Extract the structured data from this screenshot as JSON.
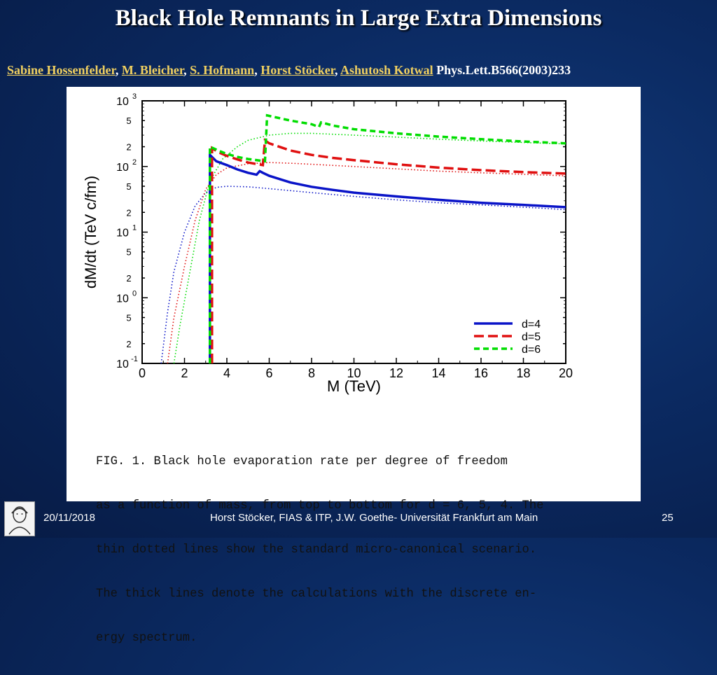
{
  "slide": {
    "title": "Black Hole Remnants in Large Extra Dimensions",
    "authors": [
      "Sabine Hossenfelder",
      "M. Bleicher",
      "S. Hofmann",
      "Horst Stöcker",
      "Ashutosh Kotwal"
    ],
    "reference": "Phys.Lett.B566(2003)233",
    "caption_lines": [
      "FIG. 1. Black hole evaporation rate per degree of freedom",
      "as a function of mass, from top to bottom for d = 6, 5, 4. The",
      "thin dotted lines show the standard micro-canonical scenario.",
      "The thick lines denote the calculations with the discrete en-",
      "ergy spectrum."
    ]
  },
  "footer": {
    "date": "20/11/2018",
    "credit": "Horst Stöcker, FIAS & ITP, J.W. Goethe- Universität Frankfurt am Main",
    "page": "25"
  },
  "colors": {
    "d4": "#0a14c8",
    "d5": "#e01010",
    "d6": "#00dd00"
  },
  "chart_data": {
    "type": "line",
    "xlabel": "M (TeV)",
    "ylabel": "dM/dt (TeV c/fm)",
    "xlim": [
      0,
      20
    ],
    "ylim": [
      0.1,
      1000
    ],
    "yscale": "log",
    "x_ticks": [
      "0",
      "2",
      "4",
      "6",
      "8",
      "10",
      "12",
      "14",
      "16",
      "18",
      "20"
    ],
    "y_ticks": [
      {
        "mant": "10",
        "exp": "3",
        "value": 1000
      },
      {
        "mant": "5",
        "exp": "",
        "value": 500
      },
      {
        "mant": "2",
        "exp": "",
        "value": 200
      },
      {
        "mant": "10",
        "exp": "2",
        "value": 100
      },
      {
        "mant": "5",
        "exp": "",
        "value": 50
      },
      {
        "mant": "2",
        "exp": "",
        "value": 20
      },
      {
        "mant": "10",
        "exp": "1",
        "value": 10
      },
      {
        "mant": "5",
        "exp": "",
        "value": 5
      },
      {
        "mant": "2",
        "exp": "",
        "value": 2
      },
      {
        "mant": "10",
        "exp": "0",
        "value": 1
      },
      {
        "mant": "5",
        "exp": "",
        "value": 0.5
      },
      {
        "mant": "2",
        "exp": "",
        "value": 0.2
      },
      {
        "mant": "10",
        "exp": "-1",
        "value": 0.1
      }
    ],
    "legend_position": "bottom-right",
    "series": [
      {
        "name": "d=4",
        "color_key": "d4",
        "thick": [
          [
            3.2,
            0.1
          ],
          [
            3.2,
            150
          ],
          [
            3.5,
            120
          ],
          [
            4,
            105
          ],
          [
            4.5,
            90
          ],
          [
            5,
            80
          ],
          [
            5.4,
            75
          ],
          [
            5.55,
            85
          ],
          [
            5.7,
            80
          ],
          [
            6,
            72
          ],
          [
            7,
            57
          ],
          [
            8,
            49
          ],
          [
            9,
            44
          ],
          [
            10,
            40
          ],
          [
            12,
            35
          ],
          [
            14,
            31
          ],
          [
            16,
            28
          ],
          [
            18,
            26
          ],
          [
            20,
            24
          ]
        ],
        "dotted": [
          [
            0.9,
            0.1
          ],
          [
            1.2,
            0.6
          ],
          [
            1.5,
            2.5
          ],
          [
            2,
            10
          ],
          [
            2.5,
            25
          ],
          [
            3,
            40
          ],
          [
            3.5,
            48
          ],
          [
            4,
            50
          ],
          [
            5,
            49
          ],
          [
            6,
            46
          ],
          [
            8,
            40
          ],
          [
            10,
            35
          ],
          [
            12,
            31
          ],
          [
            14,
            28
          ],
          [
            16,
            26
          ],
          [
            18,
            24
          ],
          [
            20,
            22
          ]
        ]
      },
      {
        "name": "d=5",
        "color_key": "d5",
        "thick": [
          [
            3.3,
            0.1
          ],
          [
            3.3,
            190
          ],
          [
            3.6,
            165
          ],
          [
            4,
            145
          ],
          [
            4.5,
            128
          ],
          [
            5,
            115
          ],
          [
            5.7,
            105
          ],
          [
            5.8,
            250
          ],
          [
            6,
            225
          ],
          [
            7,
            175
          ],
          [
            8,
            150
          ],
          [
            9,
            135
          ],
          [
            10,
            125
          ],
          [
            12,
            108
          ],
          [
            14,
            96
          ],
          [
            16,
            88
          ],
          [
            18,
            82
          ],
          [
            20,
            78
          ]
        ],
        "dotted": [
          [
            1.2,
            0.1
          ],
          [
            1.5,
            0.5
          ],
          [
            2,
            3
          ],
          [
            2.5,
            15
          ],
          [
            3,
            45
          ],
          [
            3.5,
            75
          ],
          [
            4,
            95
          ],
          [
            5,
            110
          ],
          [
            6,
            115
          ],
          [
            7,
            112
          ],
          [
            8,
            108
          ],
          [
            10,
            100
          ],
          [
            12,
            92
          ],
          [
            14,
            85
          ],
          [
            16,
            80
          ],
          [
            18,
            76
          ],
          [
            20,
            72
          ]
        ]
      },
      {
        "name": "d=6",
        "color_key": "d6",
        "thick": [
          [
            3.2,
            0.1
          ],
          [
            3.2,
            200
          ],
          [
            3.6,
            175
          ],
          [
            4,
            155
          ],
          [
            4.5,
            140
          ],
          [
            5,
            130
          ],
          [
            5.8,
            120
          ],
          [
            5.9,
            600
          ],
          [
            6,
            590
          ],
          [
            7,
            500
          ],
          [
            8,
            440
          ],
          [
            8.35,
            400
          ],
          [
            8.45,
            470
          ],
          [
            9,
            420
          ],
          [
            10,
            370
          ],
          [
            12,
            320
          ],
          [
            14,
            285
          ],
          [
            16,
            260
          ],
          [
            18,
            240
          ],
          [
            20,
            225
          ]
        ],
        "dotted": [
          [
            1.5,
            0.1
          ],
          [
            1.8,
            0.4
          ],
          [
            2.2,
            2
          ],
          [
            2.7,
            15
          ],
          [
            3.2,
            60
          ],
          [
            3.8,
            130
          ],
          [
            4.5,
            200
          ],
          [
            5,
            250
          ],
          [
            6,
            300
          ],
          [
            7,
            320
          ],
          [
            8,
            320
          ],
          [
            10,
            300
          ],
          [
            12,
            280
          ],
          [
            14,
            260
          ],
          [
            16,
            245
          ],
          [
            18,
            232
          ],
          [
            20,
            220
          ]
        ]
      }
    ]
  }
}
